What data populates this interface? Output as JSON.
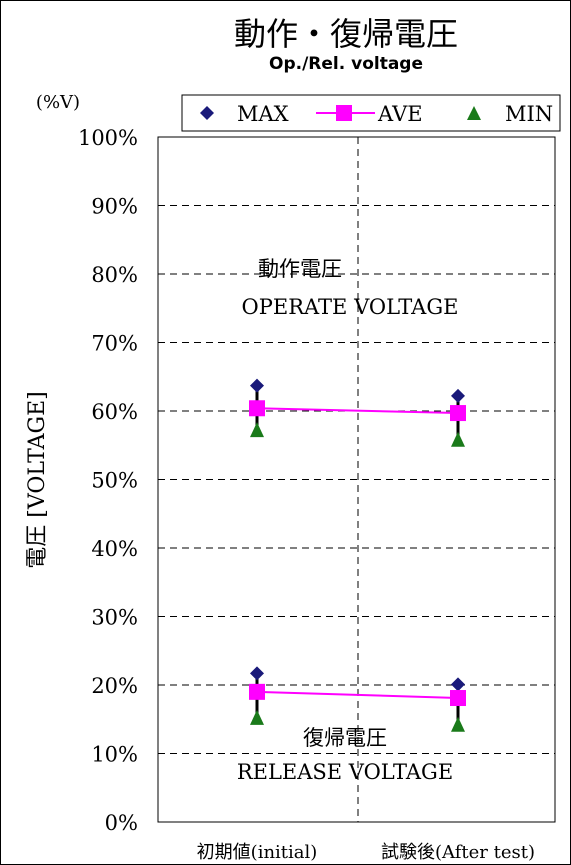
{
  "chart_data": {
    "type": "line",
    "title": "動作・復帰電圧",
    "subtitle": "Op./Rel. voltage",
    "ylabel": "電圧 [VOLTAGE]",
    "yunit": "(%V)",
    "ylim": [
      0,
      100
    ],
    "yticks": [
      "0%",
      "10%",
      "20%",
      "30%",
      "40%",
      "50%",
      "60%",
      "70%",
      "80%",
      "90%",
      "100%"
    ],
    "categories": [
      "初期値(initial)",
      "試験後(After test)"
    ],
    "grid": true,
    "legend_position": "top",
    "annotations": {
      "operate_jp": "動作電圧",
      "operate_en": "OPERATE VOLTAGE",
      "release_jp": "復帰電圧",
      "release_en": "RELEASE VOLTAGE"
    },
    "groups": [
      {
        "group": "operate",
        "series": [
          {
            "name": "MAX",
            "values": [
              63.7,
              62.2
            ]
          },
          {
            "name": "AVE",
            "values": [
              60.4,
              59.7
            ]
          },
          {
            "name": "MIN",
            "values": [
              57.2,
              55.8
            ]
          }
        ]
      },
      {
        "group": "release",
        "series": [
          {
            "name": "MAX",
            "values": [
              21.7,
              20.1
            ]
          },
          {
            "name": "AVE",
            "values": [
              19.0,
              18.1
            ]
          },
          {
            "name": "MIN",
            "values": [
              15.2,
              14.2
            ]
          }
        ]
      }
    ],
    "colors": {
      "MAX": "#1a1a7a",
      "AVE": "#ff00ff",
      "MIN": "#1a7a1a"
    }
  }
}
